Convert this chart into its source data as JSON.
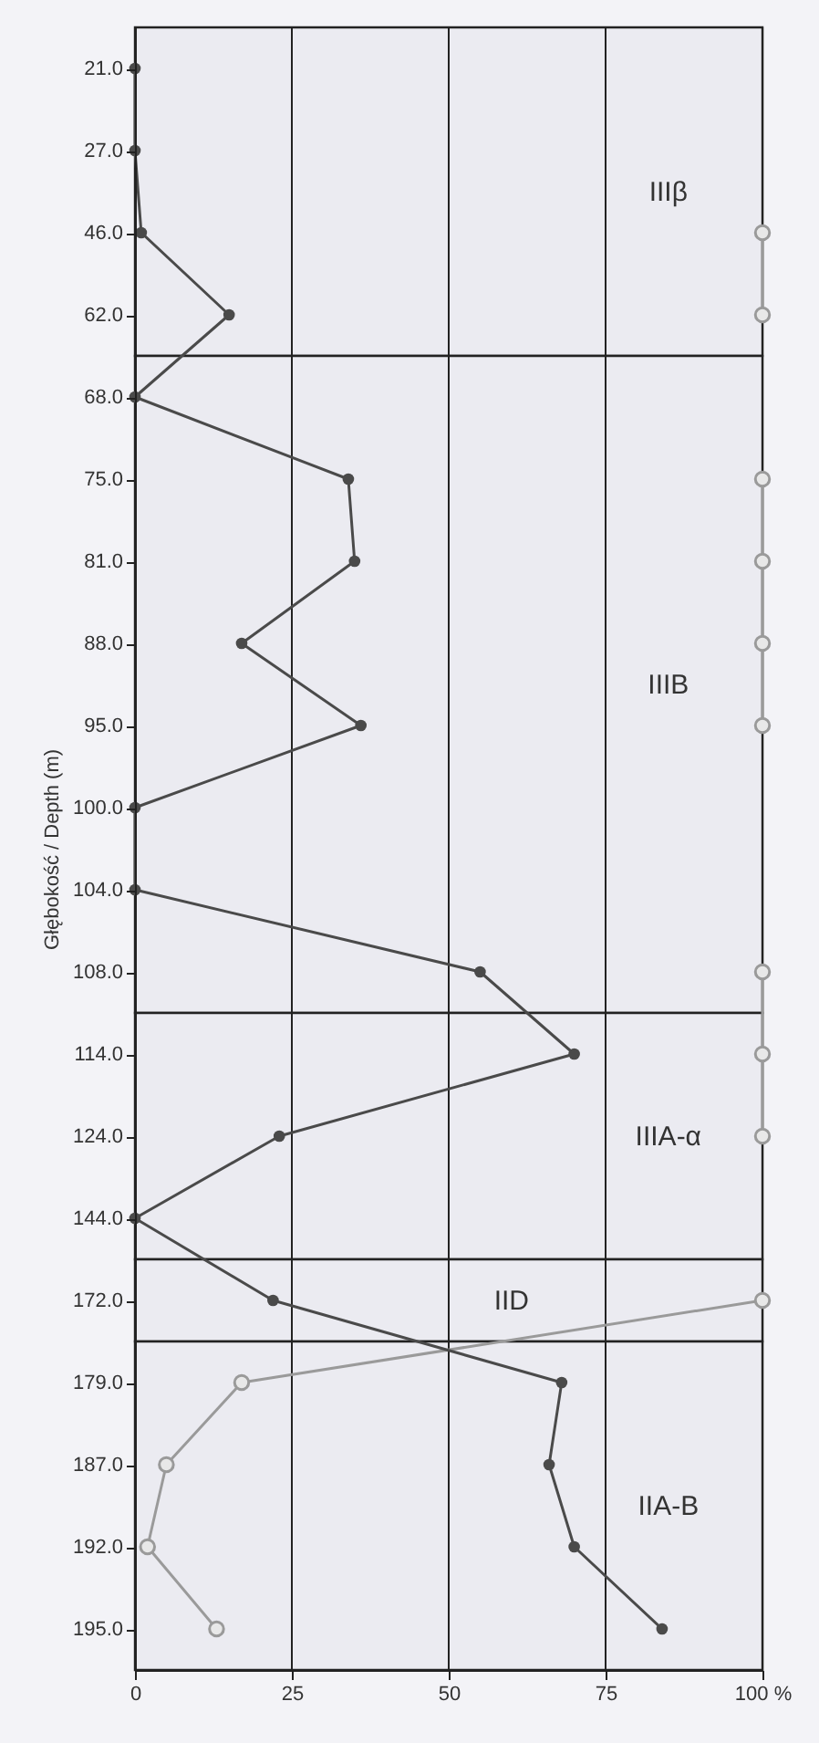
{
  "chart_data": {
    "type": "line",
    "orientation": "horizontal",
    "ylabel": "Głębokość / Depth (m)",
    "categories": [
      "21.0",
      "27.0",
      "46.0",
      "62.0",
      "68.0",
      "75.0",
      "81.0",
      "88.0",
      "95.0",
      "100.0",
      "104.0",
      "108.0",
      "114.0",
      "124.0",
      "144.0",
      "172.0",
      "179.0",
      "187.0",
      "192.0",
      "195.0"
    ],
    "series": [
      {
        "color": "#9a9a9a",
        "values": [
          null,
          null,
          100,
          100,
          null,
          100,
          100,
          100,
          100,
          null,
          null,
          100,
          100,
          100,
          null,
          100,
          17,
          5,
          2,
          13
        ]
      },
      {
        "color": "#4a4a4a",
        "values": [
          0,
          0,
          1,
          15,
          0,
          34,
          35,
          17,
          36,
          0,
          0,
          55,
          70,
          23,
          0,
          22,
          68,
          66,
          70,
          84
        ]
      }
    ],
    "xlim": [
      0,
      100
    ],
    "xticks": [
      0,
      25,
      50,
      75,
      {
        "value": 100,
        "label": "100 %"
      }
    ],
    "grid": "x",
    "marker": "circle",
    "line_style": "solid",
    "bands": [
      {
        "axis": "y",
        "from": "21.0",
        "to": "62.0",
        "label": "IIIβ"
      },
      {
        "axis": "y",
        "from": "68.0",
        "to": "108.0",
        "label": "IIIB"
      },
      {
        "axis": "y",
        "from": "114.0",
        "to": "144.0",
        "label": "IIIA-α"
      },
      {
        "axis": "y",
        "from": "172.0",
        "to": "172.0",
        "label": "IID"
      },
      {
        "axis": "y",
        "from": "179.0",
        "to": "195.0",
        "label": "IIA-B"
      }
    ]
  }
}
